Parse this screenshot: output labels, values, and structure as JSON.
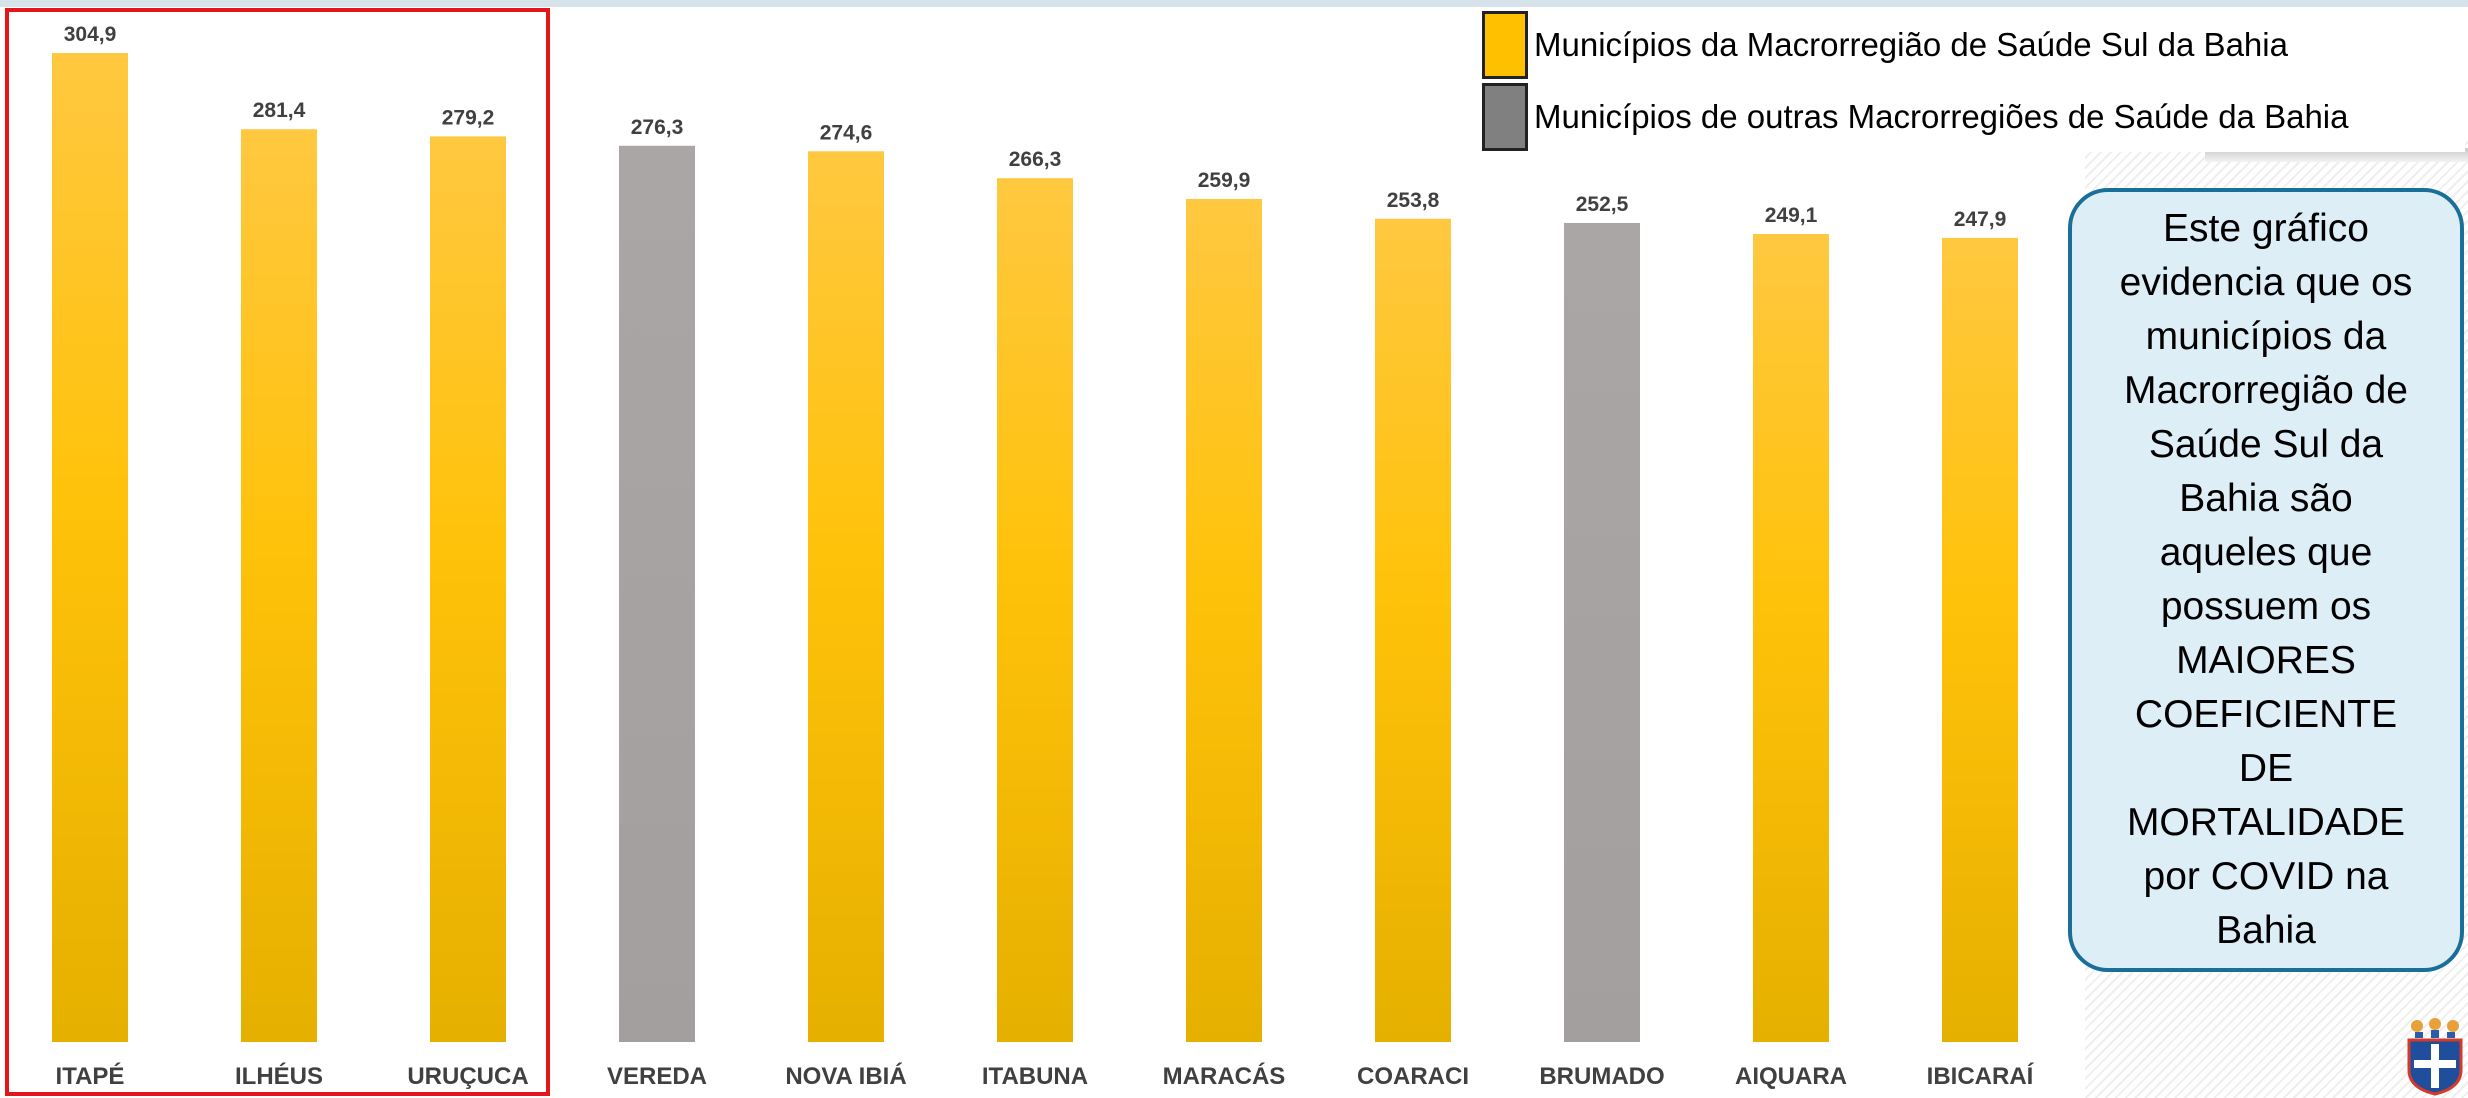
{
  "chart_data": {
    "type": "bar",
    "categories": [
      "ITAPÉ",
      "ILHÉUS",
      "URUÇUCA",
      "VEREDA",
      "NOVA IBIÁ",
      "ITABUNA",
      "MARACÁS",
      "COARACI",
      "BRUMADO",
      "AIQUARA",
      "IBICARAÍ"
    ],
    "values": [
      304.9,
      281.4,
      279.2,
      276.3,
      274.6,
      266.3,
      259.9,
      253.8,
      252.5,
      249.1,
      247.9
    ],
    "value_labels": [
      "304,9",
      "281,4",
      "279,2",
      "276,3",
      "274,6",
      "266,3",
      "259,9",
      "253,8",
      "252,5",
      "249,1",
      "247,9"
    ],
    "groups": [
      "sul",
      "sul",
      "sul",
      "outras",
      "sul",
      "sul",
      "sul",
      "sul",
      "outras",
      "sul",
      "sul"
    ],
    "ylim": [
      0,
      304.9
    ],
    "grid": false,
    "legend": [
      {
        "key": "sul",
        "label": "Municípios da Macrorregião de Saúde Sul da Bahia",
        "color": "#ffc000"
      },
      {
        "key": "outras",
        "label": "Municípios de outras Macrorregiões de Saúde da Bahia",
        "color": "#808080"
      }
    ],
    "legend_position": "top-right",
    "highlighted_categories": [
      "ITAPÉ",
      "ILHÉUS",
      "URUÇUCA"
    ],
    "title": "",
    "xlabel": "",
    "ylabel": ""
  },
  "colors": {
    "bar_sul": "#ffc000",
    "bar_outras": "#a8a5a5",
    "highlight_border": "#e3161b",
    "callout_fill": "#ddeef7",
    "callout_border": "#1a6f99"
  },
  "callout": {
    "text": "Este gráfico\nevidencia que os\nmunicípios da\nMacrorregião de\nSaúde Sul da\nBahia são\naqueles que\npossuem os\nMAIORES\nCOEFICIENTE\nDE\nMORTALIDADE\npor COVID na\nBahia"
  },
  "logo": {
    "icon": "coat-of-arms-icon"
  }
}
